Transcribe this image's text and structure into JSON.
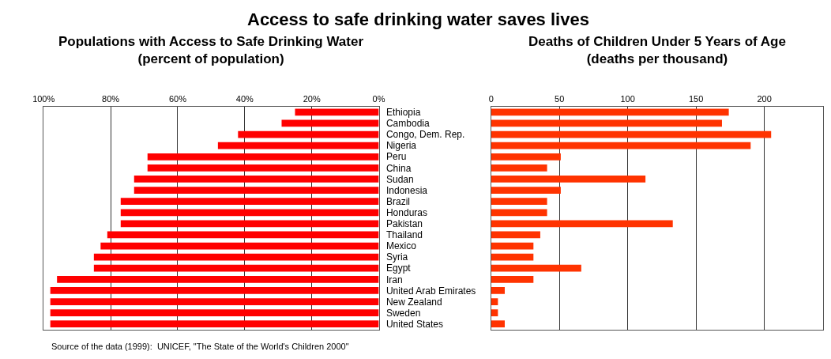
{
  "chart_data": [
    {
      "type": "bar",
      "orientation": "horizontal",
      "title": "Populations with Access to Safe Drinking Water",
      "subtitle": "(percent of population)",
      "categories": [
        "Ethiopia",
        "Cambodia",
        "Congo, Dem. Rep.",
        "Nigeria",
        "Peru",
        "China",
        "Sudan",
        "Indonesia",
        "Brazil",
        "Honduras",
        "Pakistan",
        "Thailand",
        "Mexico",
        "Syria",
        "Egypt",
        "Iran",
        "United Arab Emirates",
        "New Zealand",
        "Sweden",
        "United States"
      ],
      "values": [
        25,
        29,
        42,
        48,
        69,
        69,
        73,
        73,
        77,
        77,
        77,
        81,
        83,
        85,
        85,
        96,
        98,
        98,
        98,
        98
      ],
      "color": "#ff0000",
      "xlim": [
        100,
        0
      ],
      "xticks": [
        {
          "value": 100,
          "label": "100%"
        },
        {
          "value": 80,
          "label": "80%"
        },
        {
          "value": 60,
          "label": "60%"
        },
        {
          "value": 40,
          "label": "40%"
        },
        {
          "value": 20,
          "label": "20%"
        },
        {
          "value": 0,
          "label": "0%"
        }
      ],
      "grid": "x",
      "annotations": [
        "Access to safe drinking water saves lives",
        "Source of the data (1999):  UNICEF, \"The State of the World's Children 2000\""
      ]
    },
    {
      "type": "bar",
      "orientation": "horizontal",
      "title": "Deaths of Children Under 5 Years of Age",
      "subtitle": "(deaths per thousand)",
      "categories": [
        null,
        null,
        null,
        null,
        null,
        null,
        null,
        null,
        null,
        null,
        null,
        null,
        null,
        null,
        null,
        null,
        null,
        null,
        null,
        null
      ],
      "values": [
        174,
        169,
        205,
        190,
        51,
        41,
        113,
        51,
        41,
        41,
        133,
        36,
        31,
        31,
        66,
        31,
        10,
        5,
        5,
        10
      ],
      "color": "#ff3300",
      "xlim": [
        0,
        243
      ],
      "xticks": [
        0,
        50,
        100,
        150,
        200
      ],
      "grid": "x",
      "tick_labels": "x"
    }
  ]
}
